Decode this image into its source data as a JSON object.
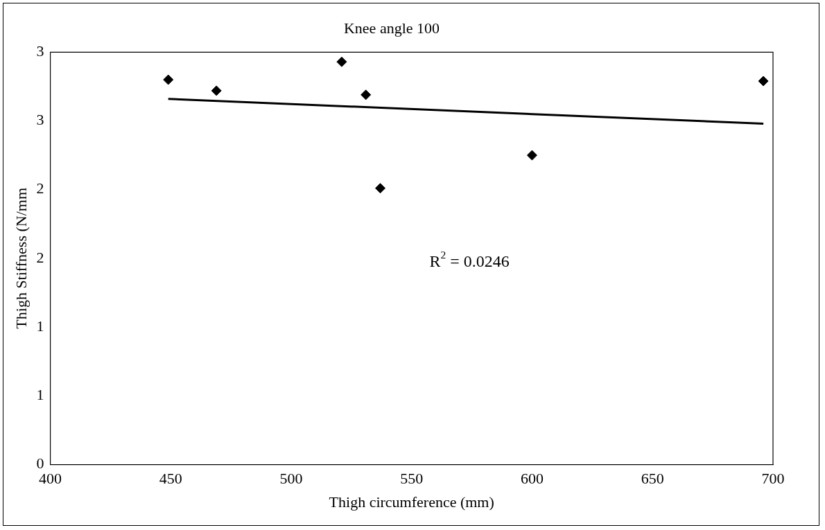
{
  "chart_data": {
    "type": "scatter",
    "title": "Knee angle 100",
    "xlabel": "Thigh circumference (mm)",
    "ylabel": "Thigh Stiffness (N/mm",
    "marker": "diamond",
    "grid": false,
    "legend": false,
    "xlim": [
      400,
      700
    ],
    "xticks": [
      400,
      450,
      500,
      550,
      600,
      650,
      700
    ],
    "ylim": [
      0,
      3
    ],
    "yticks": [
      0,
      {
        "value": 0.5,
        "label": "1"
      },
      1,
      {
        "value": 1.5,
        "label": "2"
      },
      2,
      {
        "value": 2.5,
        "label": "3"
      },
      3
    ],
    "annotations": [
      "R$^{2}$ = 0.0246"
    ],
    "series": [
      {
        "color": "#000000",
        "x": [
          449,
          469,
          521,
          531,
          537,
          600,
          696
        ],
        "values": [
          2.8,
          2.72,
          2.93,
          2.69,
          2.01,
          2.25,
          2.79
        ]
      },
      {
        "type": "line",
        "color": "#000000",
        "marker": "none",
        "x": [
          449,
          696
        ],
        "values": [
          2.66,
          2.48
        ]
      }
    ]
  }
}
